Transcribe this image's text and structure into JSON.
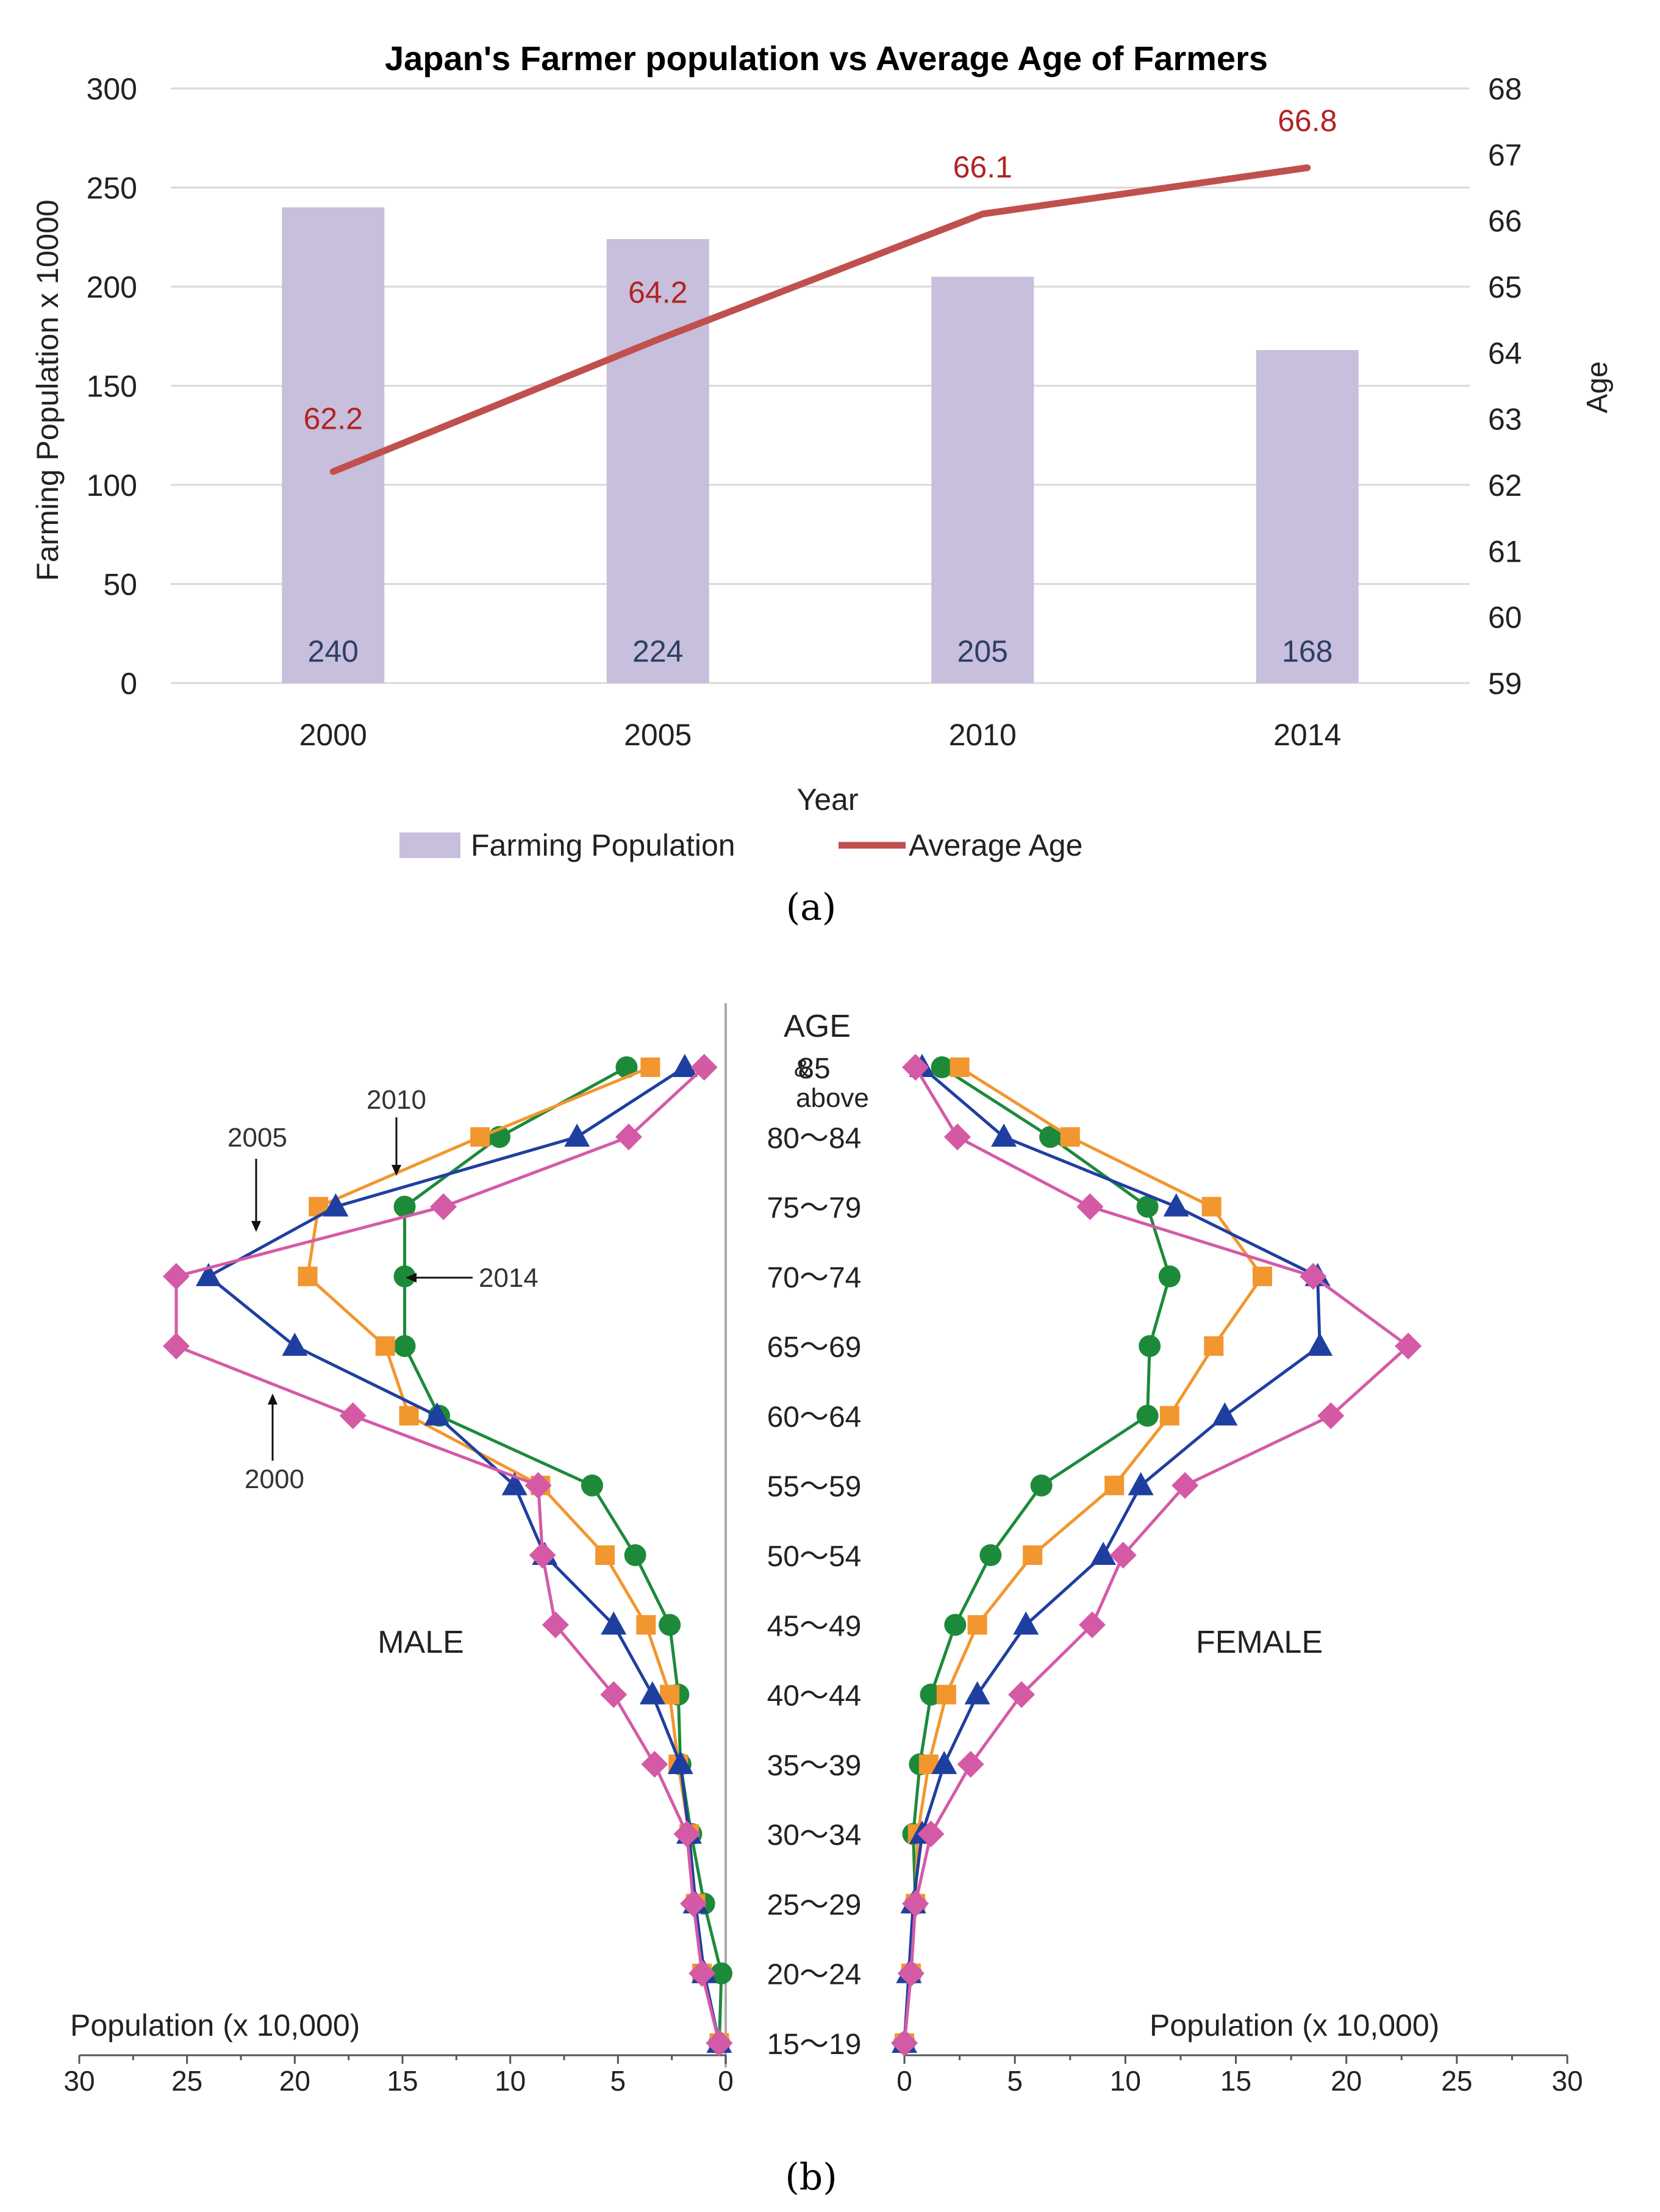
{
  "colors": {
    "bar": "#c7bfdc",
    "age_line": "#c0504d",
    "age_label": "#b22222",
    "bar_label": "#2e3f66",
    "grid": "#d9d9d9",
    "axis_text": "#222222",
    "s2000": "#d45aa6",
    "s2005": "#f2962f",
    "s2010": "#1f3fa0",
    "s2014": "#1d8a3a",
    "center_line": "#a9a9a9"
  },
  "panel_a": {
    "label": "(a)",
    "chart_data": {
      "type": "bar+line",
      "title": "Japan's Farmer population vs Average Age of Farmers",
      "categories": [
        "2000",
        "2005",
        "2010",
        "2014"
      ],
      "xlabel": "Year",
      "ylabel": "Farming Population x 10000",
      "y2label": "Age",
      "ylim": [
        0,
        300
      ],
      "yticks": [
        "0",
        "50",
        "100",
        "150",
        "200",
        "250",
        "300"
      ],
      "y2lim": [
        59,
        68
      ],
      "y2ticks": [
        "59",
        "60",
        "61",
        "62",
        "63",
        "64",
        "65",
        "66",
        "67",
        "68"
      ],
      "series": [
        {
          "name": "Farming Population",
          "kind": "bar",
          "axis": "left",
          "values": [
            240,
            224,
            205,
            168
          ],
          "labels": [
            "240",
            "224",
            "205",
            "168"
          ]
        },
        {
          "name": "Average Age",
          "kind": "line",
          "axis": "right",
          "values": [
            62.2,
            64.2,
            66.1,
            66.8
          ],
          "labels": [
            "62.2",
            "64.2",
            "66.1",
            "66.8"
          ]
        }
      ],
      "legend": [
        "Farming Population",
        "Average Age"
      ],
      "legend_position": "bottom",
      "grid": true
    }
  },
  "panel_b": {
    "label": "(b)",
    "chart_data": {
      "type": "line",
      "layout": "population-pyramid",
      "age_header": "AGE",
      "age_groups": [
        "15～19",
        "20～24",
        "25～29",
        "30～34",
        "35～39",
        "40～44",
        "45～49",
        "50～54",
        "55～59",
        "60～64",
        "65～69",
        "70～74",
        "75～79",
        "80～84",
        "85"
      ],
      "age_top_suffix": [
        "&",
        "above"
      ],
      "male_label": "MALE",
      "female_label": "FEMALE",
      "xlabel": "Population (x 10,000)",
      "xlim": [
        0,
        30
      ],
      "xticks": [
        "30",
        "25",
        "20",
        "15",
        "10",
        "5",
        "0"
      ],
      "xticks_right": [
        "0",
        "5",
        "10",
        "15",
        "20",
        "25",
        "30"
      ],
      "annotations": [
        "2000",
        "2005",
        "2010",
        "2014"
      ],
      "series": [
        {
          "name": "2000",
          "marker": "diamond",
          "male": [
            0.3,
            1.1,
            1.5,
            1.8,
            3.3,
            5.2,
            7.9,
            8.5,
            8.7,
            17.3,
            25.5,
            25.5,
            13.1,
            4.5,
            1.0
          ],
          "female": [
            0.0,
            0.3,
            0.5,
            1.2,
            3.0,
            5.3,
            8.5,
            9.9,
            12.7,
            19.3,
            22.8,
            18.5,
            8.4,
            2.4,
            0.5
          ]
        },
        {
          "name": "2005",
          "marker": "square",
          "male": [
            0.3,
            1.1,
            1.4,
            1.7,
            2.2,
            2.6,
            3.7,
            5.6,
            8.6,
            14.7,
            15.8,
            19.4,
            18.9,
            11.4,
            3.5
          ],
          "female": [
            0.0,
            0.3,
            0.5,
            0.6,
            1.1,
            1.9,
            3.3,
            5.8,
            9.5,
            12.0,
            14.0,
            16.2,
            13.9,
            7.5,
            2.5
          ]
        },
        {
          "name": "2010",
          "marker": "triangle",
          "male": [
            0.3,
            1.0,
            1.4,
            1.7,
            2.1,
            3.4,
            5.2,
            8.4,
            9.8,
            13.4,
            20.0,
            24.0,
            18.1,
            6.9,
            1.9
          ],
          "female": [
            0.0,
            0.2,
            0.4,
            0.8,
            1.8,
            3.3,
            5.5,
            9.0,
            10.7,
            14.5,
            18.8,
            18.7,
            12.3,
            4.5,
            0.8
          ]
        },
        {
          "name": "2014",
          "marker": "circle",
          "male": [
            0.3,
            0.2,
            1.0,
            1.6,
            2.1,
            2.2,
            2.6,
            4.2,
            6.2,
            13.3,
            14.9,
            14.9,
            14.9,
            10.5,
            4.6
          ],
          "female": [
            0.0,
            0.3,
            0.5,
            0.4,
            0.7,
            1.2,
            2.3,
            3.9,
            6.2,
            11.0,
            11.1,
            12.0,
            11.0,
            6.6,
            1.7
          ]
        }
      ]
    }
  }
}
